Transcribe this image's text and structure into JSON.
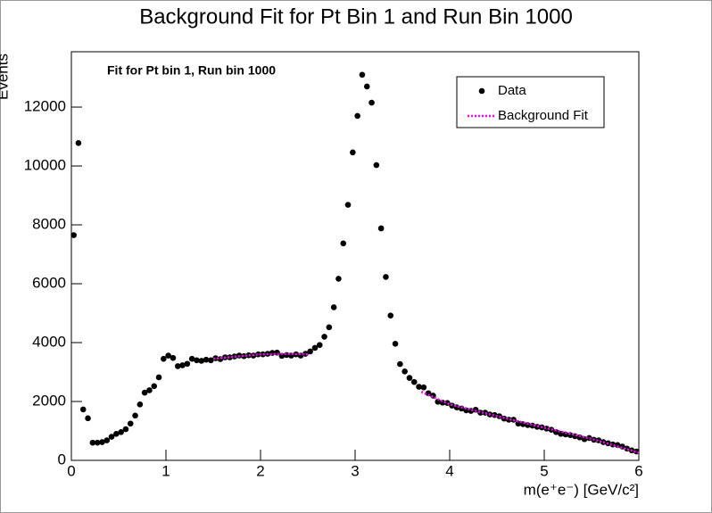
{
  "chart_data": {
    "type": "scatter",
    "title": "Background Fit for Pt Bin 1 and Run Bin 1000",
    "annotation": "Fit for Pt bin 1, Run bin 1000",
    "x_label": "m(e⁺e⁻) [GeV/c²]",
    "y_label": "Events",
    "xlim": [
      0,
      6
    ],
    "ylim": [
      0,
      13880
    ],
    "xticks": [
      0,
      1,
      2,
      3,
      4,
      5,
      6
    ],
    "yticks": [
      0,
      2000,
      4000,
      6000,
      8000,
      10000,
      12000
    ],
    "legend": "top-right",
    "series": [
      {
        "name": "Data",
        "color": "#000000",
        "style": "points",
        "x": [
          0.025,
          0.075,
          0.125,
          0.175,
          0.225,
          0.275,
          0.325,
          0.375,
          0.425,
          0.475,
          0.525,
          0.575,
          0.625,
          0.675,
          0.725,
          0.775,
          0.825,
          0.875,
          0.925,
          0.975,
          1.025,
          1.075,
          1.125,
          1.175,
          1.225,
          1.275,
          1.325,
          1.375,
          1.425,
          1.475,
          1.525,
          1.575,
          1.625,
          1.675,
          1.725,
          1.775,
          1.825,
          1.875,
          1.925,
          1.975,
          2.025,
          2.075,
          2.125,
          2.175,
          2.225,
          2.275,
          2.325,
          2.375,
          2.425,
          2.475,
          2.525,
          2.575,
          2.625,
          2.675,
          2.725,
          2.775,
          2.825,
          2.875,
          2.925,
          2.975,
          3.025,
          3.075,
          3.125,
          3.175,
          3.225,
          3.275,
          3.325,
          3.375,
          3.425,
          3.475,
          3.525,
          3.575,
          3.625,
          3.675,
          3.725,
          3.775,
          3.825,
          3.875,
          3.925,
          3.975,
          4.025,
          4.075,
          4.125,
          4.175,
          4.225,
          4.275,
          4.325,
          4.375,
          4.425,
          4.475,
          4.525,
          4.575,
          4.625,
          4.675,
          4.725,
          4.775,
          4.825,
          4.875,
          4.925,
          4.975,
          5.025,
          5.075,
          5.125,
          5.175,
          5.225,
          5.275,
          5.325,
          5.375,
          5.425,
          5.475,
          5.525,
          5.575,
          5.625,
          5.675,
          5.725,
          5.775,
          5.825,
          5.875,
          5.925,
          5.975
        ],
        "values": [
          7650,
          10780,
          1730,
          1430,
          600,
          600,
          620,
          680,
          800,
          900,
          960,
          1060,
          1250,
          1520,
          1900,
          2300,
          2380,
          2520,
          2820,
          3450,
          3560,
          3480,
          3200,
          3230,
          3280,
          3450,
          3400,
          3380,
          3420,
          3400,
          3470,
          3440,
          3500,
          3500,
          3530,
          3560,
          3540,
          3570,
          3560,
          3600,
          3600,
          3620,
          3650,
          3660,
          3550,
          3580,
          3560,
          3600,
          3560,
          3620,
          3700,
          3820,
          3920,
          4200,
          4520,
          5200,
          6170,
          7370,
          8680,
          10460,
          11700,
          13100,
          12700,
          12150,
          10030,
          7880,
          6230,
          4920,
          3960,
          3270,
          3020,
          2800,
          2660,
          2500,
          2480,
          2280,
          2200,
          1990,
          1960,
          1950,
          1860,
          1800,
          1760,
          1700,
          1680,
          1720,
          1620,
          1620,
          1560,
          1540,
          1500,
          1420,
          1380,
          1380,
          1250,
          1230,
          1200,
          1180,
          1140,
          1120,
          1080,
          1040,
          960,
          900,
          880,
          860,
          820,
          780,
          720,
          760,
          700,
          680,
          620,
          580,
          540,
          520,
          470,
          400,
          340,
          300
        ]
      },
      {
        "name": "Background Fit",
        "color": "#ff00ff",
        "style": "dotted-line",
        "x": [
          1.5,
          1.75,
          2.0,
          2.25,
          2.5,
          3.0,
          3.7,
          4.0,
          4.5,
          5.0,
          5.5,
          6.0
        ],
        "values": [
          3450,
          3530,
          3600,
          3620,
          3600,
          null,
          2330,
          1900,
          1500,
          1110,
          730,
          260
        ]
      }
    ]
  }
}
